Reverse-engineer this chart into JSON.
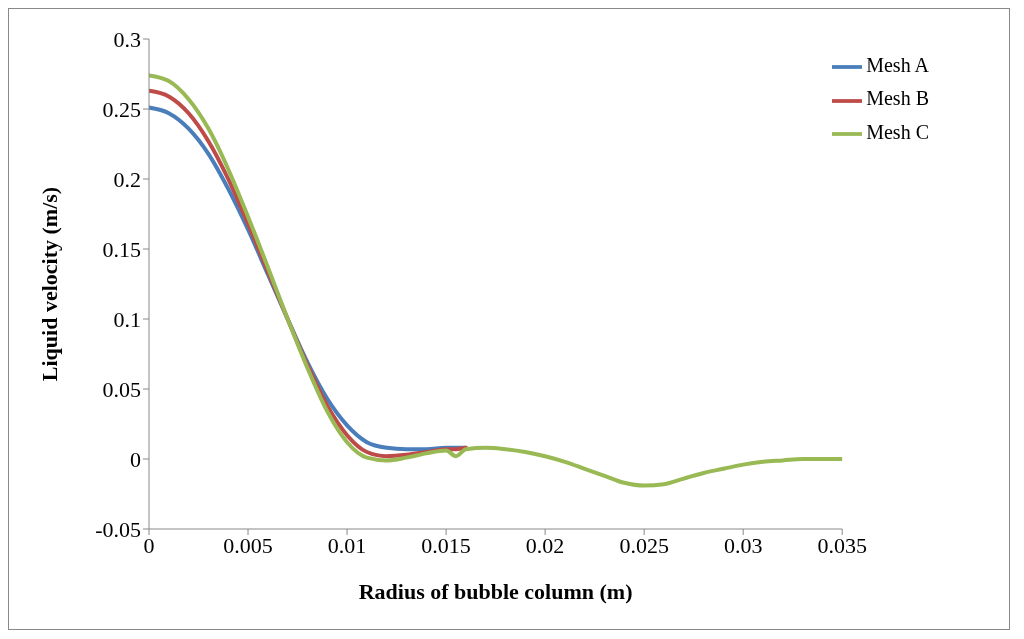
{
  "chart_data": {
    "type": "line",
    "xlabel": "Radius of bubble column (m)",
    "ylabel": "Liquid velocity (m/s)",
    "x": [
      0,
      0.001,
      0.002,
      0.003,
      0.004,
      0.005,
      0.006,
      0.007,
      0.008,
      0.009,
      0.01,
      0.011,
      0.012,
      0.013,
      0.014,
      0.015,
      0.0155,
      0.016,
      0.017,
      0.018,
      0.019,
      0.02,
      0.021,
      0.022,
      0.023,
      0.024,
      0.025,
      0.026,
      0.027,
      0.028,
      0.029,
      0.03,
      0.031,
      0.032,
      0.033,
      0.034,
      0.035
    ],
    "series": [
      {
        "name": "Mesh A",
        "color": "#4a7ebb",
        "values": [
          0.251,
          0.247,
          0.236,
          0.218,
          0.193,
          0.164,
          0.132,
          0.1,
          0.069,
          0.043,
          0.024,
          0.012,
          0.008,
          0.007,
          0.007,
          0.008,
          0.008,
          0.008,
          null,
          null,
          null,
          null,
          null,
          null,
          null,
          null,
          null,
          null,
          null,
          null,
          null,
          null,
          null,
          null,
          null,
          null,
          null
        ]
      },
      {
        "name": "Mesh B",
        "color": "#be4b48",
        "values": [
          0.263,
          0.259,
          0.247,
          0.227,
          0.2,
          0.168,
          0.134,
          0.1,
          0.067,
          0.038,
          0.017,
          0.005,
          0.002,
          0.003,
          0.005,
          0.007,
          0.007,
          0.008,
          null,
          null,
          null,
          null,
          null,
          null,
          null,
          null,
          null,
          null,
          null,
          null,
          null,
          null,
          null,
          null,
          null,
          null,
          null
        ]
      },
      {
        "name": "Mesh C",
        "color": "#98b954",
        "values": [
          0.274,
          0.27,
          0.257,
          0.236,
          0.207,
          0.173,
          0.137,
          0.1,
          0.065,
          0.034,
          0.012,
          0.001,
          -0.001,
          0.001,
          0.004,
          0.006,
          0.002,
          0.007,
          0.008,
          0.007,
          0.005,
          0.002,
          -0.002,
          -0.007,
          -0.012,
          -0.017,
          -0.019,
          -0.018,
          -0.014,
          -0.01,
          -0.007,
          -0.004,
          -0.002,
          -0.001,
          0,
          0,
          0
        ]
      }
    ],
    "xlim": [
      0,
      0.035
    ],
    "xticks": [
      0,
      0.005,
      0.01,
      0.015,
      0.02,
      0.025,
      0.03,
      0.035
    ],
    "ylim": [
      -0.05,
      0.3
    ],
    "yticks": [
      -0.05,
      0,
      0.05,
      0.1,
      0.15,
      0.2,
      0.25,
      0.3
    ],
    "grid": false,
    "legend": "top right",
    "marker": "none",
    "line_style": "solid"
  }
}
